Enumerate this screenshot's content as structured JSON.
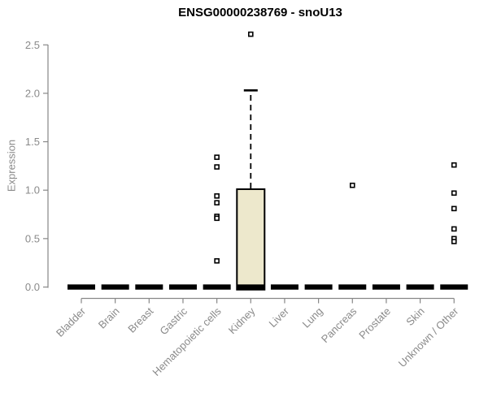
{
  "chart_data": {
    "type": "boxplot",
    "title": "ENSG00000238769 - snoU13",
    "ylabel": "Expression",
    "xlabel": "",
    "ylim": [
      0,
      2.5
    ],
    "y_tick_labels": [
      "0.0",
      "0.5",
      "1.0",
      "1.5",
      "2.0",
      "2.5"
    ],
    "grid": false,
    "legend": "none",
    "categories": [
      "Bladder",
      "Brain",
      "Breast",
      "Gastric",
      "Hematopoietic cells",
      "Kidney",
      "Liver",
      "Lung",
      "Pancreas",
      "Prostate",
      "Skin",
      "Unknown / Other"
    ],
    "boxes": [
      {
        "category": "Bladder",
        "q1": 0,
        "median": 0,
        "q3": 0,
        "whisker_low": 0,
        "whisker_high": 0,
        "outliers": []
      },
      {
        "category": "Brain",
        "q1": 0,
        "median": 0,
        "q3": 0,
        "whisker_low": 0,
        "whisker_high": 0,
        "outliers": []
      },
      {
        "category": "Breast",
        "q1": 0,
        "median": 0,
        "q3": 0,
        "whisker_low": 0,
        "whisker_high": 0,
        "outliers": []
      },
      {
        "category": "Gastric",
        "q1": 0,
        "median": 0,
        "q3": 0,
        "whisker_low": 0,
        "whisker_high": 0,
        "outliers": []
      },
      {
        "category": "Hematopoietic cells",
        "q1": 0,
        "median": 0,
        "q3": 0,
        "whisker_low": 0,
        "whisker_high": 0,
        "outliers": [
          1.34,
          1.24,
          0.94,
          0.87,
          0.73,
          0.71,
          0.27
        ]
      },
      {
        "category": "Kidney",
        "q1": 0,
        "median": 0,
        "q3": 1.01,
        "whisker_low": 0,
        "whisker_high": 2.03,
        "outliers": [
          2.61
        ]
      },
      {
        "category": "Liver",
        "q1": 0,
        "median": 0,
        "q3": 0,
        "whisker_low": 0,
        "whisker_high": 0,
        "outliers": []
      },
      {
        "category": "Lung",
        "q1": 0,
        "median": 0,
        "q3": 0,
        "whisker_low": 0,
        "whisker_high": 0,
        "outliers": []
      },
      {
        "category": "Pancreas",
        "q1": 0,
        "median": 0,
        "q3": 0,
        "whisker_low": 0,
        "whisker_high": 0,
        "outliers": [
          1.05
        ]
      },
      {
        "category": "Prostate",
        "q1": 0,
        "median": 0,
        "q3": 0,
        "whisker_low": 0,
        "whisker_high": 0,
        "outliers": []
      },
      {
        "category": "Skin",
        "q1": 0,
        "median": 0,
        "q3": 0,
        "whisker_low": 0,
        "whisker_high": 0,
        "outliers": []
      },
      {
        "category": "Unknown / Other",
        "q1": 0,
        "median": 0,
        "q3": 0,
        "whisker_low": 0,
        "whisker_high": 0,
        "outliers": [
          1.26,
          0.97,
          0.81,
          0.6,
          0.5,
          0.47
        ]
      }
    ],
    "colors": {
      "box_fill": "#EDE8CC",
      "box_border": "#000000",
      "median": "#000000",
      "whisker": "#000000",
      "outlier_border": "#000000",
      "outlier_fill": "#ffffff",
      "axis": "#878787",
      "tick_text": "#8a8a8a",
      "title_text": "#000000"
    }
  }
}
